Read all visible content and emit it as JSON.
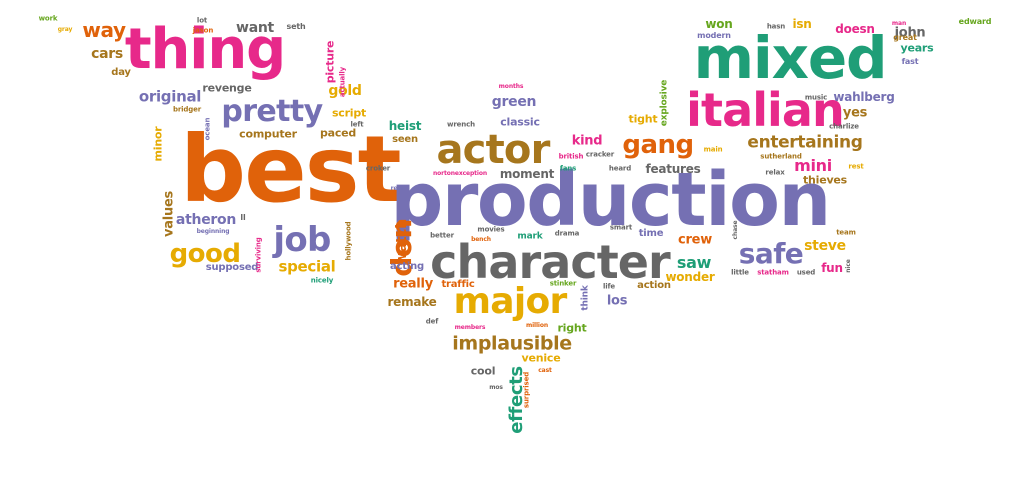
{
  "colors": {
    "orange": "#e0620a",
    "green": "#1f9e77",
    "purple": "#7570b3",
    "pink": "#e7298a",
    "lime": "#66a61e",
    "gold": "#e6ab02",
    "brown": "#a6761d",
    "gray": "#666666"
  },
  "words": [
    {
      "text": "best",
      "color": "orange"
    },
    {
      "text": "production",
      "color": "purple"
    },
    {
      "text": "mixed",
      "color": "green"
    },
    {
      "text": "thing",
      "color": "pink"
    },
    {
      "text": "character",
      "color": "gray"
    },
    {
      "text": "italian",
      "color": "pink"
    },
    {
      "text": "actor",
      "color": "brown"
    },
    {
      "text": "major",
      "color": "gold"
    },
    {
      "text": "pretty",
      "color": "purple"
    },
    {
      "text": "job",
      "color": "purple"
    },
    {
      "text": "safe",
      "color": "purple"
    },
    {
      "text": "good",
      "color": "gold"
    },
    {
      "text": "gang",
      "color": "orange"
    },
    {
      "text": "don",
      "color": "orange"
    },
    {
      "text": "entertaining",
      "color": "brown"
    },
    {
      "text": "way",
      "color": "orange"
    },
    {
      "text": "implausible",
      "color": "brown"
    },
    {
      "text": "mini",
      "color": "pink"
    },
    {
      "text": "effects",
      "color": "green"
    },
    {
      "text": "original",
      "color": "purple"
    },
    {
      "text": "green",
      "color": "purple"
    },
    {
      "text": "watch",
      "color": "orange"
    },
    {
      "text": "special",
      "color": "gold"
    },
    {
      "text": "saw",
      "color": "green"
    },
    {
      "text": "steve",
      "color": "gold"
    },
    {
      "text": "cars",
      "color": "brown"
    },
    {
      "text": "want",
      "color": "gray"
    },
    {
      "text": "gold",
      "color": "gold"
    },
    {
      "text": "remake",
      "color": "brown"
    },
    {
      "text": "really",
      "color": "orange"
    },
    {
      "text": "values",
      "color": "brown"
    },
    {
      "text": "atheron",
      "color": "purple"
    },
    {
      "text": "john",
      "color": "gray"
    },
    {
      "text": "yes",
      "color": "brown"
    },
    {
      "text": "crew",
      "color": "orange"
    },
    {
      "text": "heist",
      "color": "green"
    },
    {
      "text": "wahlberg",
      "color": "purple"
    },
    {
      "text": "tight",
      "color": "gold"
    },
    {
      "text": "kind",
      "color": "pink"
    },
    {
      "text": "features",
      "color": "gray"
    },
    {
      "text": "moment",
      "color": "gray"
    },
    {
      "text": "wonder",
      "color": "gold"
    },
    {
      "text": "fun",
      "color": "pink"
    },
    {
      "text": "thieves",
      "color": "brown"
    },
    {
      "text": "won",
      "color": "lime"
    },
    {
      "text": "isn",
      "color": "gold"
    },
    {
      "text": "doesn",
      "color": "pink"
    },
    {
      "text": "years",
      "color": "green"
    },
    {
      "text": "los",
      "color": "purple"
    },
    {
      "text": "right",
      "color": "lime"
    },
    {
      "text": "venice",
      "color": "gold"
    },
    {
      "text": "cool",
      "color": "gray"
    },
    {
      "text": "classic",
      "color": "purple"
    },
    {
      "text": "script",
      "color": "gold"
    },
    {
      "text": "computer",
      "color": "brown"
    },
    {
      "text": "paced",
      "color": "brown"
    },
    {
      "text": "revenge",
      "color": "gray"
    },
    {
      "text": "minor",
      "color": "gold"
    },
    {
      "text": "day",
      "color": "brown"
    },
    {
      "text": "supposed",
      "color": "purple"
    },
    {
      "text": "acting",
      "color": "purple"
    },
    {
      "text": "traffic",
      "color": "orange"
    },
    {
      "text": "action",
      "color": "brown"
    },
    {
      "text": "time",
      "color": "purple"
    },
    {
      "text": "mark",
      "color": "green"
    },
    {
      "text": "picture",
      "color": "pink"
    },
    {
      "text": "seen",
      "color": "brown"
    },
    {
      "text": "explosive",
      "color": "lime"
    },
    {
      "text": "modern",
      "color": "purple"
    },
    {
      "text": "work",
      "color": "lime"
    },
    {
      "text": "edward",
      "color": "lime"
    },
    {
      "text": "seth",
      "color": "gray"
    },
    {
      "text": "lot",
      "color": "gray"
    },
    {
      "text": "jason",
      "color": "orange"
    },
    {
      "text": "hasn",
      "color": "gray"
    },
    {
      "text": "great",
      "color": "brown"
    },
    {
      "text": "fast",
      "color": "purple"
    },
    {
      "text": "man",
      "color": "pink"
    },
    {
      "text": "music",
      "color": "gray"
    },
    {
      "text": "charlize",
      "color": "gray"
    },
    {
      "text": "sutherland",
      "color": "brown"
    },
    {
      "text": "relax",
      "color": "gray"
    },
    {
      "text": "rest",
      "color": "gold"
    },
    {
      "text": "little",
      "color": "gray"
    },
    {
      "text": "statham",
      "color": "pink"
    },
    {
      "text": "used",
      "color": "gray"
    },
    {
      "text": "nice",
      "color": "gray"
    },
    {
      "text": "team",
      "color": "brown"
    },
    {
      "text": "chase",
      "color": "gray"
    },
    {
      "text": "heard",
      "color": "gray"
    },
    {
      "text": "fans",
      "color": "green"
    },
    {
      "text": "british",
      "color": "pink"
    },
    {
      "text": "cracker",
      "color": "gray"
    },
    {
      "text": "croker",
      "color": "gray"
    },
    {
      "text": "nortonexception",
      "color": "pink"
    },
    {
      "text": "wrench",
      "color": "gray"
    },
    {
      "text": "months",
      "color": "pink"
    },
    {
      "text": "bridger",
      "color": "brown"
    },
    {
      "text": "ocean",
      "color": "purple"
    },
    {
      "text": "left",
      "color": "gray"
    },
    {
      "text": "actually",
      "color": "pink"
    },
    {
      "text": "gray",
      "color": "gold"
    },
    {
      "text": "real",
      "color": "purple"
    },
    {
      "text": "better",
      "color": "gray"
    },
    {
      "text": "bench",
      "color": "orange"
    },
    {
      "text": "movies",
      "color": "gray"
    },
    {
      "text": "drama",
      "color": "gray"
    },
    {
      "text": "smart",
      "color": "gray"
    },
    {
      "text": "life",
      "color": "gray"
    },
    {
      "text": "think",
      "color": "purple"
    },
    {
      "text": "stinker",
      "color": "lime"
    },
    {
      "text": "million",
      "color": "orange"
    },
    {
      "text": "members",
      "color": "pink"
    },
    {
      "text": "def",
      "color": "gray"
    },
    {
      "text": "mos",
      "color": "gray"
    },
    {
      "text": "cast",
      "color": "orange"
    },
    {
      "text": "surprised",
      "color": "orange"
    },
    {
      "text": "hollywood",
      "color": "brown"
    },
    {
      "text": "surviving",
      "color": "pink"
    },
    {
      "text": "nicely",
      "color": "green"
    },
    {
      "text": "beginning",
      "color": "purple"
    },
    {
      "text": "ll",
      "color": "gray"
    },
    {
      "text": "main",
      "color": "gold"
    }
  ]
}
